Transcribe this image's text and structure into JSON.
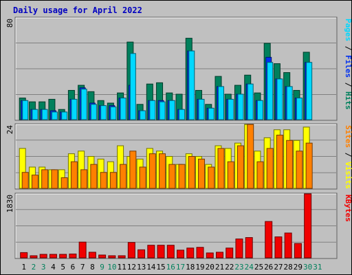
{
  "chart_data": [
    {
      "type": "bar",
      "title": "Daily usage for April 2022",
      "ylabel_parts": [
        {
          "text": "Pages",
          "color": "#00d8ff"
        },
        {
          "text": " / ",
          "color": "#000000"
        },
        {
          "text": "Files",
          "color": "#0030f0"
        },
        {
          "text": " / ",
          "color": "#000000"
        },
        {
          "text": "Hits",
          "color": "#00805c"
        }
      ],
      "ymax_label": "80",
      "ylim": [
        0,
        80
      ],
      "categories": [
        "1",
        "2",
        "3",
        "4",
        "5",
        "6",
        "7",
        "8",
        "9",
        "10",
        "11",
        "12",
        "13",
        "14",
        "15",
        "16",
        "17",
        "18",
        "19",
        "20",
        "21",
        "22",
        "23",
        "24",
        "25",
        "26",
        "27",
        "28",
        "29",
        "30",
        "31"
      ],
      "series": [
        {
          "name": "Hits",
          "color": "#00805c",
          "values": [
            17,
            14,
            14,
            16,
            8,
            23,
            27,
            22,
            15,
            13,
            21,
            61,
            12,
            28,
            29,
            21,
            20,
            64,
            23,
            12,
            34,
            20,
            27,
            35,
            21,
            60,
            44,
            37,
            23,
            53,
            0
          ]
        },
        {
          "name": "Files",
          "color": "#0030f0",
          "values": [
            15,
            8,
            8,
            7,
            6,
            16,
            25,
            13,
            11,
            11,
            17,
            27,
            7,
            15,
            15,
            15,
            8,
            54,
            16,
            9,
            26,
            16,
            20,
            28,
            15,
            49,
            32,
            26,
            17,
            45,
            0
          ]
        },
        {
          "name": "Pages",
          "color": "#00d8ff",
          "values": [
            15,
            8,
            8,
            6,
            6,
            16,
            24,
            12,
            11,
            10,
            17,
            52,
            7,
            15,
            14,
            15,
            8,
            54,
            16,
            9,
            26,
            16,
            20,
            28,
            15,
            45,
            32,
            26,
            17,
            45,
            0
          ]
        }
      ]
    },
    {
      "type": "bar",
      "ylabel_parts": [
        {
          "text": "Sites",
          "color": "#ff8000"
        },
        {
          "text": " / ",
          "color": "#000000"
        },
        {
          "text": "Visits",
          "color": "#ffff00"
        }
      ],
      "ymax_label": "24",
      "ylim": [
        0,
        24
      ],
      "categories": [
        "1",
        "2",
        "3",
        "4",
        "5",
        "6",
        "7",
        "8",
        "9",
        "10",
        "11",
        "12",
        "13",
        "14",
        "15",
        "16",
        "17",
        "18",
        "19",
        "20",
        "21",
        "22",
        "23",
        "24",
        "25",
        "26",
        "27",
        "28",
        "29",
        "30",
        "31"
      ],
      "series": [
        {
          "name": "Visits",
          "color": "#ffff00",
          "values": [
            15,
            8,
            8,
            7,
            7,
            13,
            14,
            12,
            11,
            10,
            16,
            12,
            11,
            15,
            14,
            12,
            9,
            13,
            12,
            9,
            16,
            15,
            17,
            24,
            14,
            19,
            22,
            22,
            18,
            23,
            0
          ]
        },
        {
          "name": "Sites",
          "color": "#ff8000",
          "values": [
            6,
            5,
            7,
            7,
            4,
            10,
            7,
            9,
            6,
            6,
            9,
            14,
            8,
            13,
            13,
            9,
            9,
            12,
            11,
            8,
            15,
            10,
            16,
            24,
            10,
            15,
            20,
            18,
            14,
            17,
            0
          ]
        }
      ]
    },
    {
      "type": "bar",
      "ylabel_parts": [
        {
          "text": "KBytes",
          "color": "#f00000"
        }
      ],
      "ymax_label": "1830",
      "ylim": [
        0,
        1830
      ],
      "categories": [
        "1",
        "2",
        "3",
        "4",
        "5",
        "6",
        "7",
        "8",
        "9",
        "10",
        "11",
        "12",
        "13",
        "14",
        "15",
        "16",
        "17",
        "18",
        "19",
        "20",
        "21",
        "22",
        "23",
        "24",
        "25",
        "26",
        "27",
        "28",
        "29",
        "30",
        "31"
      ],
      "series": [
        {
          "name": "KBytes",
          "color": "#f00000",
          "values": [
            150,
            60,
            100,
            100,
            100,
            110,
            450,
            160,
            80,
            60,
            60,
            440,
            230,
            360,
            360,
            360,
            220,
            280,
            300,
            140,
            160,
            280,
            540,
            580,
            0,
            1040,
            600,
            710,
            410,
            1830,
            0
          ]
        }
      ]
    }
  ],
  "xaxis": {
    "day_labels": [
      "1",
      "2",
      "3",
      "4",
      "5",
      "6",
      "7",
      "8",
      "9",
      "10",
      "11",
      "12",
      "13",
      "14",
      "15",
      "16",
      "17",
      "18",
      "19",
      "20",
      "21",
      "22",
      "23",
      "24",
      "25",
      "26",
      "27",
      "28",
      "29",
      "30",
      "31"
    ],
    "weekend_days": [
      "2",
      "3",
      "9",
      "10",
      "16",
      "17",
      "23",
      "24",
      "30",
      "31"
    ],
    "weekday_color": "#000000",
    "weekend_color": "#00805c"
  }
}
